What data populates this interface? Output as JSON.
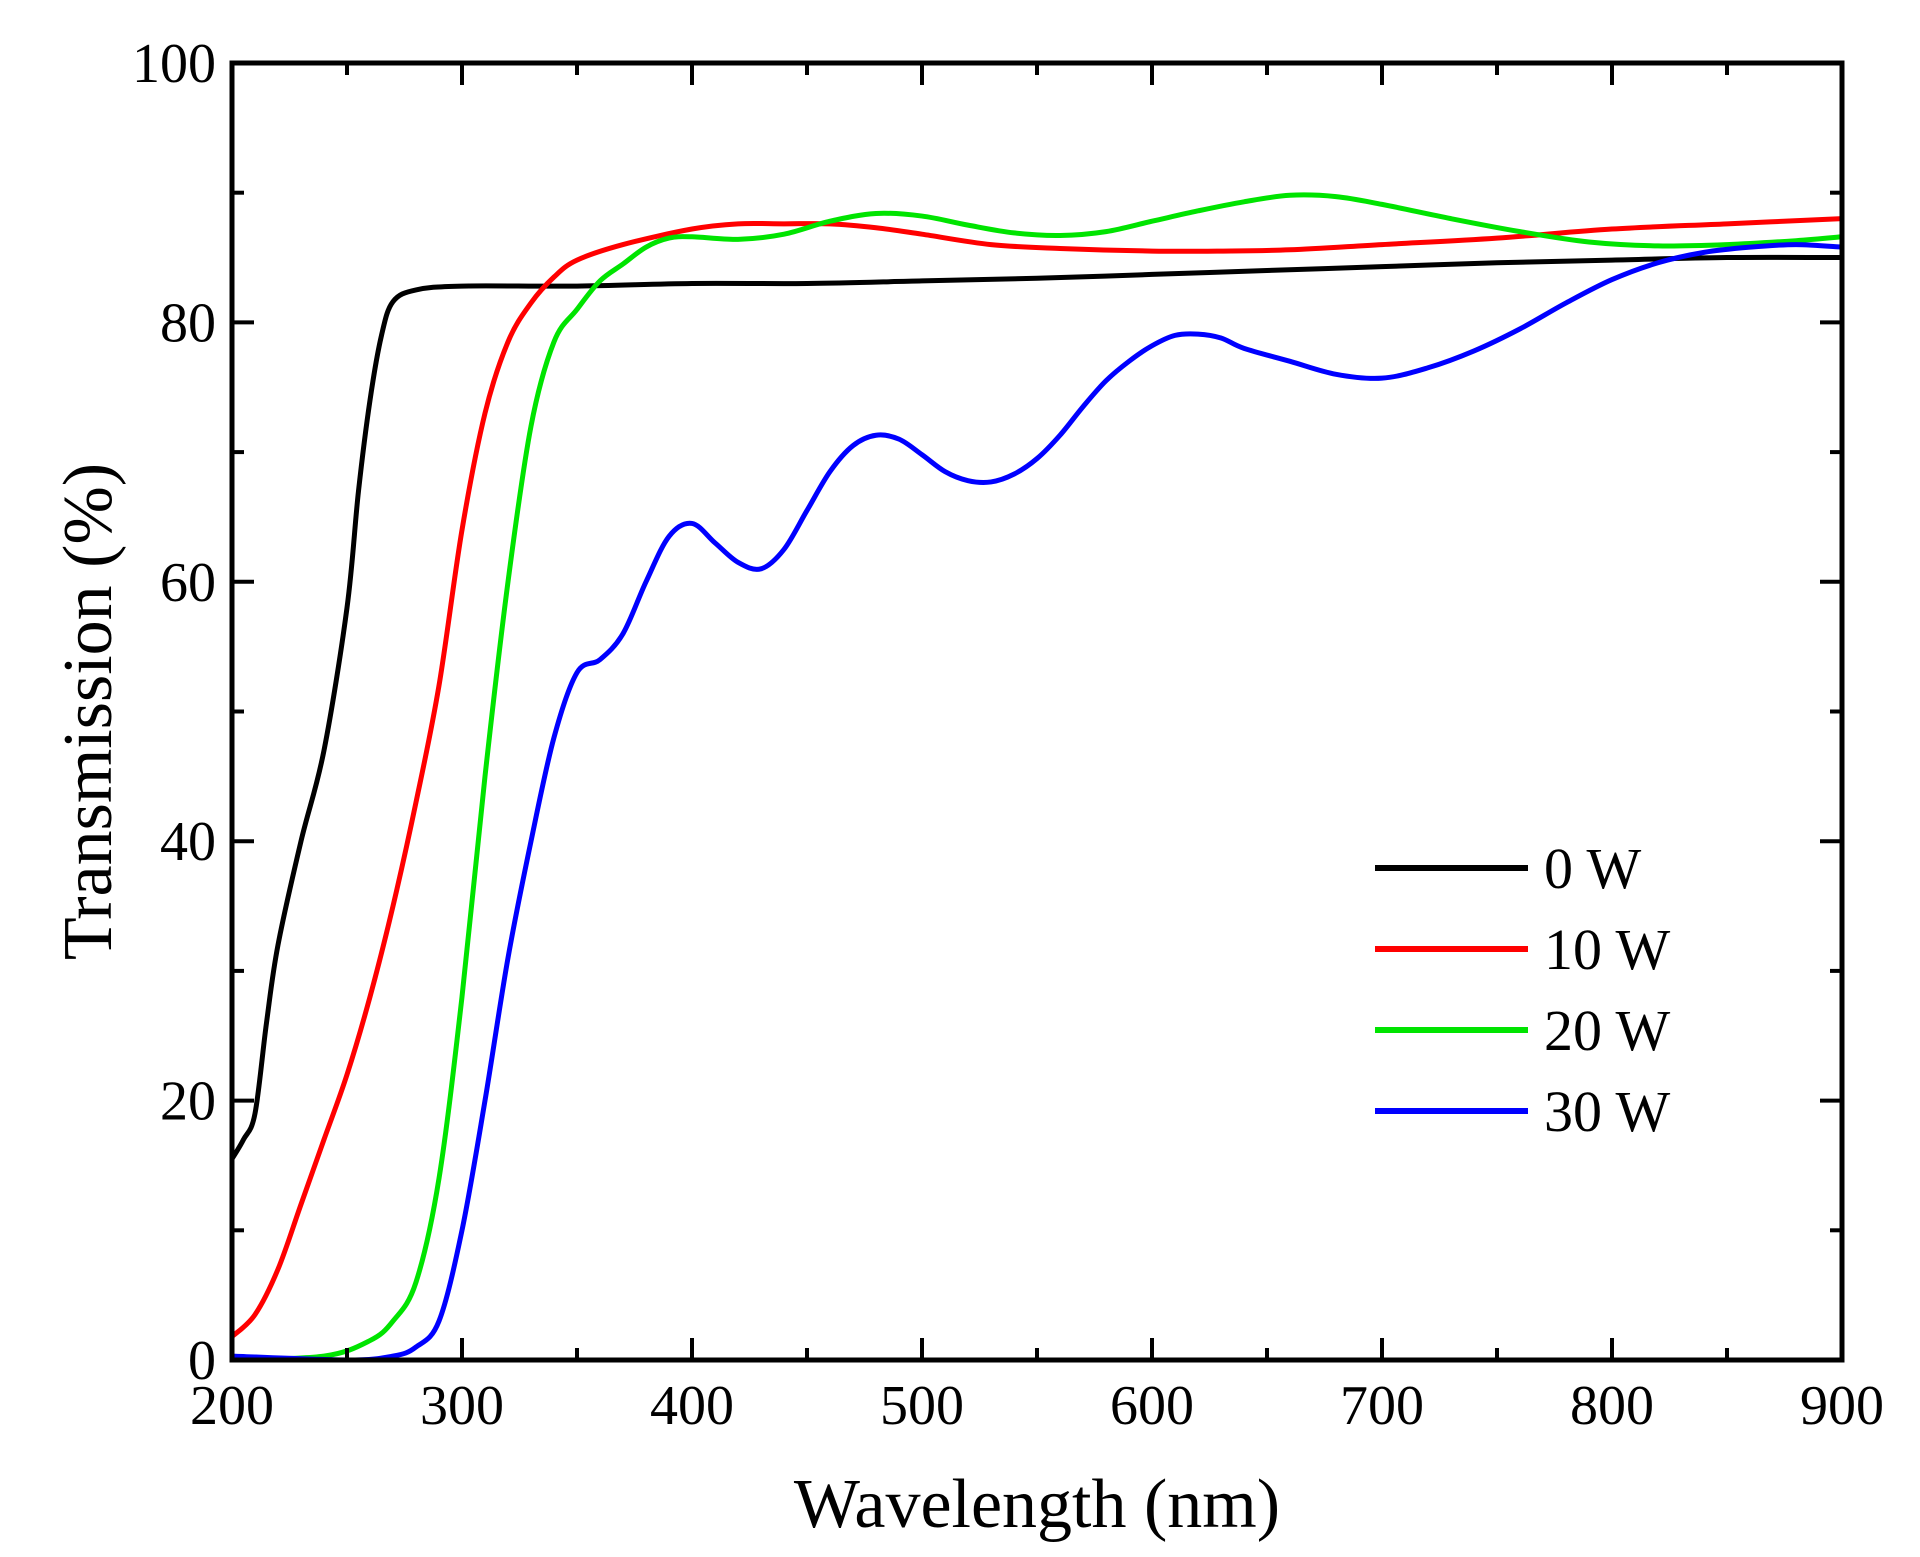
{
  "chart_data": {
    "type": "line",
    "title": "",
    "xlabel": "Wavelength (nm)",
    "ylabel": "Transmission (%)",
    "xlim": [
      200,
      900
    ],
    "ylim": [
      0,
      100
    ],
    "xticks": [
      "200",
      "300",
      "400",
      "500",
      "600",
      "700",
      "800",
      "900"
    ],
    "yticks": [
      "0",
      "20",
      "40",
      "60",
      "80",
      "100"
    ],
    "grid": false,
    "legend_position": "lower-right",
    "series": [
      {
        "name": "0 W",
        "color": "#000000",
        "points": [
          [
            200,
            15.5
          ],
          [
            205,
            17
          ],
          [
            210,
            19
          ],
          [
            215,
            26
          ],
          [
            220,
            32
          ],
          [
            230,
            40
          ],
          [
            240,
            47
          ],
          [
            250,
            58
          ],
          [
            255,
            67
          ],
          [
            260,
            74
          ],
          [
            265,
            79
          ],
          [
            270,
            81.6
          ],
          [
            280,
            82.5
          ],
          [
            300,
            82.8
          ],
          [
            350,
            82.8
          ],
          [
            400,
            83
          ],
          [
            450,
            83
          ],
          [
            500,
            83.2
          ],
          [
            550,
            83.4
          ],
          [
            600,
            83.7
          ],
          [
            650,
            84
          ],
          [
            700,
            84.3
          ],
          [
            750,
            84.6
          ],
          [
            800,
            84.8
          ],
          [
            850,
            85
          ],
          [
            900,
            85
          ]
        ]
      },
      {
        "name": "10 W",
        "color": "#ff0000",
        "points": [
          [
            200,
            1.8
          ],
          [
            210,
            3.5
          ],
          [
            220,
            7
          ],
          [
            230,
            12
          ],
          [
            240,
            17
          ],
          [
            250,
            22
          ],
          [
            260,
            28
          ],
          [
            270,
            35
          ],
          [
            280,
            43
          ],
          [
            290,
            52
          ],
          [
            300,
            64
          ],
          [
            310,
            73
          ],
          [
            320,
            78.5
          ],
          [
            330,
            81.5
          ],
          [
            340,
            83.5
          ],
          [
            350,
            84.8
          ],
          [
            370,
            86
          ],
          [
            400,
            87.2
          ],
          [
            420,
            87.6
          ],
          [
            440,
            87.6
          ],
          [
            460,
            87.6
          ],
          [
            480,
            87.3
          ],
          [
            500,
            86.8
          ],
          [
            530,
            86
          ],
          [
            560,
            85.7
          ],
          [
            600,
            85.5
          ],
          [
            630,
            85.5
          ],
          [
            660,
            85.6
          ],
          [
            700,
            86
          ],
          [
            750,
            86.5
          ],
          [
            800,
            87.2
          ],
          [
            850,
            87.6
          ],
          [
            900,
            88
          ]
        ]
      },
      {
        "name": "20 W",
        "color": "#00e400",
        "points": [
          [
            200,
            0
          ],
          [
            240,
            0.3
          ],
          [
            260,
            1.5
          ],
          [
            270,
            3
          ],
          [
            280,
            6
          ],
          [
            290,
            14
          ],
          [
            300,
            28
          ],
          [
            310,
            45
          ],
          [
            320,
            60
          ],
          [
            330,
            72
          ],
          [
            340,
            78.5
          ],
          [
            350,
            81
          ],
          [
            360,
            83.2
          ],
          [
            370,
            84.5
          ],
          [
            380,
            85.8
          ],
          [
            390,
            86.5
          ],
          [
            400,
            86.6
          ],
          [
            420,
            86.4
          ],
          [
            440,
            86.8
          ],
          [
            460,
            87.8
          ],
          [
            480,
            88.4
          ],
          [
            500,
            88.2
          ],
          [
            520,
            87.5
          ],
          [
            540,
            86.9
          ],
          [
            560,
            86.7
          ],
          [
            580,
            87
          ],
          [
            600,
            87.8
          ],
          [
            620,
            88.6
          ],
          [
            640,
            89.3
          ],
          [
            660,
            89.8
          ],
          [
            680,
            89.7
          ],
          [
            700,
            89.1
          ],
          [
            730,
            88
          ],
          [
            760,
            87
          ],
          [
            790,
            86.2
          ],
          [
            820,
            85.9
          ],
          [
            850,
            86
          ],
          [
            880,
            86.3
          ],
          [
            900,
            86.6
          ]
        ]
      },
      {
        "name": "30 W",
        "color": "#0000ff",
        "points": [
          [
            200,
            0.3
          ],
          [
            250,
            0
          ],
          [
            270,
            0.3
          ],
          [
            280,
            1
          ],
          [
            290,
            3
          ],
          [
            300,
            10
          ],
          [
            310,
            20
          ],
          [
            320,
            31
          ],
          [
            330,
            40
          ],
          [
            340,
            48
          ],
          [
            350,
            53
          ],
          [
            360,
            54
          ],
          [
            370,
            56
          ],
          [
            380,
            60
          ],
          [
            390,
            63.5
          ],
          [
            400,
            64.5
          ],
          [
            410,
            63
          ],
          [
            420,
            61.5
          ],
          [
            430,
            61
          ],
          [
            440,
            62.5
          ],
          [
            450,
            65.5
          ],
          [
            460,
            68.5
          ],
          [
            470,
            70.5
          ],
          [
            480,
            71.3
          ],
          [
            490,
            71
          ],
          [
            500,
            69.8
          ],
          [
            510,
            68.5
          ],
          [
            520,
            67.8
          ],
          [
            530,
            67.7
          ],
          [
            540,
            68.3
          ],
          [
            550,
            69.5
          ],
          [
            560,
            71.3
          ],
          [
            570,
            73.5
          ],
          [
            580,
            75.5
          ],
          [
            590,
            77
          ],
          [
            600,
            78.2
          ],
          [
            610,
            79
          ],
          [
            620,
            79.1
          ],
          [
            630,
            78.8
          ],
          [
            640,
            78
          ],
          [
            660,
            77
          ],
          [
            680,
            76
          ],
          [
            700,
            75.7
          ],
          [
            720,
            76.5
          ],
          [
            740,
            77.8
          ],
          [
            760,
            79.5
          ],
          [
            780,
            81.5
          ],
          [
            800,
            83.3
          ],
          [
            820,
            84.6
          ],
          [
            840,
            85.4
          ],
          [
            860,
            85.8
          ],
          [
            880,
            86
          ],
          [
            900,
            85.8
          ]
        ]
      }
    ]
  }
}
